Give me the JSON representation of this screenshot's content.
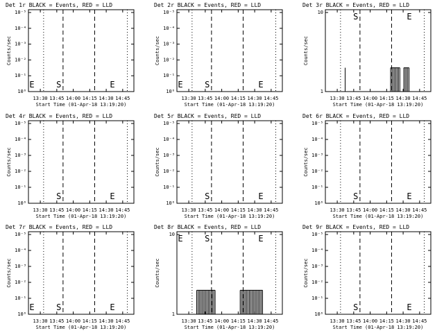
{
  "chart_data": [
    {
      "type": "line",
      "title": "Det 1r BLACK = Events, RED = LLD",
      "xlabel": "Start Time (01-Apr-18 13:19:20)",
      "ylabel": "Counts/sec",
      "y_scale": "log",
      "y_ticks": [
        "10⁰",
        "10⁻¹",
        "10⁻²",
        "10⁻³",
        "10⁻⁴",
        "10⁻⁵"
      ],
      "x_ticks": [
        "13:30",
        "13:45",
        "14:00",
        "14:15",
        "14:30",
        "14:45"
      ],
      "markers": {
        "s": "S",
        "e": "E",
        "left_e": "E"
      },
      "events": []
    },
    {
      "type": "line",
      "title": "Det 2r BLACK = Events, RED = LLD",
      "xlabel": "Start Time (01-Apr-18 13:19:20)",
      "ylabel": "Counts/sec",
      "y_scale": "log",
      "y_ticks": [
        "10⁰",
        "10⁻¹",
        "10⁻²",
        "10⁻³",
        "10⁻⁴",
        "10⁻⁵"
      ],
      "x_ticks": [
        "13:30",
        "13:45",
        "14:00",
        "14:15",
        "14:30",
        "14:45"
      ],
      "markers": {
        "s": "S",
        "e": "E",
        "left_e": "E"
      },
      "events": []
    },
    {
      "type": "line",
      "title": "Det 3r BLACK = Events, RED = LLD",
      "xlabel": "Start Time (01-Apr-18 13:19:20)",
      "ylabel": "Counts/sec",
      "y_scale": "log",
      "y_ticks": [
        "1",
        "10"
      ],
      "x_ticks": [
        "13:30",
        "13:45",
        "14:00",
        "14:15",
        "14:30",
        "14:45"
      ],
      "markers": {
        "s": "S",
        "e": "E",
        "left_e": ""
      },
      "events": [
        {
          "t": 13.62,
          "v": 2
        },
        {
          "t": 14.31,
          "v": 2
        },
        {
          "t": 14.33,
          "v": 2
        },
        {
          "t": 14.35,
          "v": 2
        },
        {
          "t": 14.37,
          "v": 2
        },
        {
          "t": 14.39,
          "v": 2
        },
        {
          "t": 14.41,
          "v": 2
        },
        {
          "t": 14.43,
          "v": 2
        },
        {
          "t": 14.45,
          "v": 2
        },
        {
          "t": 14.51,
          "v": 2
        },
        {
          "t": 14.53,
          "v": 2
        },
        {
          "t": 14.55,
          "v": 2
        },
        {
          "t": 14.57,
          "v": 2
        },
        {
          "t": 14.59,
          "v": 2
        }
      ]
    },
    {
      "type": "line",
      "title": "Det 4r BLACK = Events, RED = LLD",
      "xlabel": "Start Time (01-Apr-18 13:19:20)",
      "ylabel": "Counts/sec",
      "y_scale": "log",
      "y_ticks": [
        "10⁰",
        "10⁻¹",
        "10⁻²",
        "10⁻³",
        "10⁻⁴",
        "10⁻⁵"
      ],
      "x_ticks": [
        "13:30",
        "13:45",
        "14:00",
        "14:15",
        "14:30",
        "14:45"
      ],
      "markers": {
        "s": "S",
        "e": "E",
        "left_e": ""
      },
      "events": []
    },
    {
      "type": "line",
      "title": "Det 5r BLACK = Events, RED = LLD",
      "xlabel": "Start Time (01-Apr-18 13:19:20)",
      "ylabel": "Counts/sec",
      "y_scale": "log",
      "y_ticks": [
        "10⁰",
        "10⁻¹",
        "10⁻²",
        "10⁻³",
        "10⁻⁴",
        "10⁻⁵"
      ],
      "x_ticks": [
        "13:30",
        "13:45",
        "14:00",
        "14:15",
        "14:30",
        "14:45"
      ],
      "markers": {
        "s": "S",
        "e": "E",
        "left_e": ""
      },
      "events": []
    },
    {
      "type": "line",
      "title": "Det 6r BLACK = Events, RED = LLD",
      "xlabel": "Start Time (01-Apr-18 13:19:20)",
      "ylabel": "Counts/sec",
      "y_scale": "log",
      "y_ticks": [
        "10⁰",
        "10⁻¹",
        "10⁻²",
        "10⁻³",
        "10⁻⁴",
        "10⁻⁵"
      ],
      "x_ticks": [
        "13:30",
        "13:45",
        "14:00",
        "14:15",
        "14:30",
        "14:45"
      ],
      "markers": {
        "s": "S",
        "e": "E",
        "left_e": ""
      },
      "events": []
    },
    {
      "type": "line",
      "title": "Det 7r BLACK = Events, RED = LLD",
      "xlabel": "Start Time (01-Apr-18 13:19:20)",
      "ylabel": "Counts/sec",
      "y_scale": "log",
      "y_ticks": [
        "10⁰",
        "10⁻¹",
        "10⁻²",
        "10⁻³",
        "10⁻⁴",
        "10⁻⁵"
      ],
      "x_ticks": [
        "13:30",
        "13:45",
        "14:00",
        "14:15",
        "14:30",
        "14:45"
      ],
      "markers": {
        "s": "S",
        "e": "E",
        "left_e": "E"
      },
      "events": []
    },
    {
      "type": "line",
      "title": "Det 8r BLACK = Events, RED = LLD",
      "xlabel": "Start Time (01-Apr-18 13:19:20)",
      "ylabel": "Counts/sec",
      "y_scale": "log",
      "y_ticks": [
        "1",
        "10"
      ],
      "x_ticks": [
        "13:30",
        "13:45",
        "14:00",
        "14:15",
        "14:30",
        "14:45"
      ],
      "markers": {
        "s": "S",
        "e": "E",
        "left_e": "E"
      },
      "events": [
        {
          "t": 13.62,
          "v": 2
        },
        {
          "t": 13.64,
          "v": 2
        },
        {
          "t": 13.66,
          "v": 2
        },
        {
          "t": 13.68,
          "v": 2
        },
        {
          "t": 13.7,
          "v": 2
        },
        {
          "t": 13.72,
          "v": 2
        },
        {
          "t": 13.74,
          "v": 2
        },
        {
          "t": 13.76,
          "v": 2
        },
        {
          "t": 13.78,
          "v": 2
        },
        {
          "t": 13.8,
          "v": 2
        },
        {
          "t": 13.82,
          "v": 2
        },
        {
          "t": 13.84,
          "v": 2
        },
        {
          "t": 13.86,
          "v": 2
        },
        {
          "t": 13.88,
          "v": 2
        },
        {
          "t": 13.9,
          "v": 2
        },
        {
          "t": 14.28,
          "v": 2
        },
        {
          "t": 14.3,
          "v": 2
        },
        {
          "t": 14.32,
          "v": 2
        },
        {
          "t": 14.34,
          "v": 2
        },
        {
          "t": 14.36,
          "v": 2
        },
        {
          "t": 14.38,
          "v": 2
        },
        {
          "t": 14.4,
          "v": 2
        },
        {
          "t": 14.42,
          "v": 2
        },
        {
          "t": 14.44,
          "v": 2
        },
        {
          "t": 14.46,
          "v": 2
        },
        {
          "t": 14.48,
          "v": 2
        },
        {
          "t": 14.5,
          "v": 2
        },
        {
          "t": 14.52,
          "v": 2
        },
        {
          "t": 14.54,
          "v": 2
        },
        {
          "t": 14.56,
          "v": 2
        },
        {
          "t": 14.58,
          "v": 2
        },
        {
          "t": 14.6,
          "v": 2
        },
        {
          "t": 14.62,
          "v": 2
        }
      ]
    },
    {
      "type": "line",
      "title": "Det 9r BLACK = Events, RED = LLD",
      "xlabel": "Start Time (01-Apr-18 13:19:20)",
      "ylabel": "Counts/sec",
      "y_scale": "log",
      "y_ticks": [
        "10⁰",
        "10⁻¹",
        "10⁻²",
        "10⁻³",
        "10⁻⁴",
        "10⁻⁵"
      ],
      "x_ticks": [
        "13:30",
        "13:45",
        "14:00",
        "14:15",
        "14:30",
        "14:45"
      ],
      "markers": {
        "s": "S",
        "e": "E",
        "left_e": ""
      },
      "events": []
    }
  ]
}
